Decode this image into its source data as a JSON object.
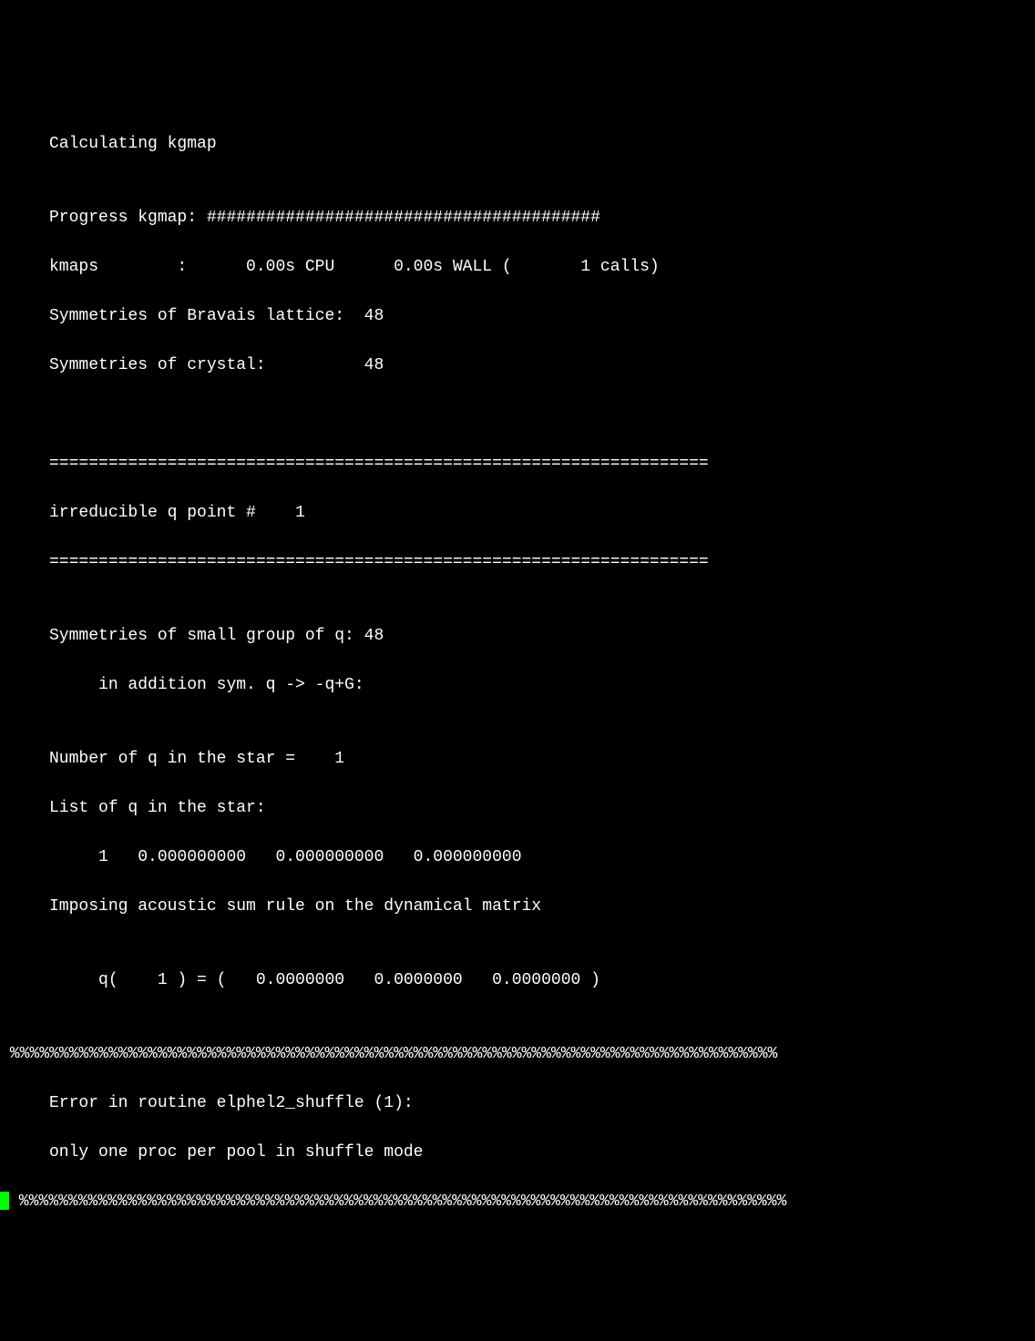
{
  "terminal": {
    "background_color": "#000000",
    "text_color": "#ffffff",
    "cursor_color": "#00ff00",
    "font_family": "monospace",
    "font_size": 18,
    "lines": {
      "calc_header": "     Calculating kgmap",
      "blank1": "",
      "progress": "     Progress kgmap: ########################################",
      "kmaps_timing": "     kmaps        :      0.00s CPU      0.00s WALL (       1 calls)",
      "sym_bravais": "     Symmetries of Bravais lattice:  48",
      "sym_crystal": "     Symmetries of crystal:          48",
      "blank2": "",
      "blank3": "",
      "divider1": "     ===================================================================",
      "qpoint_header": "     irreducible q point #    1",
      "divider2": "     ===================================================================",
      "blank4": "",
      "sym_small": "     Symmetries of small group of q: 48",
      "sym_addition": "          in addition sym. q -> -q+G:",
      "blank5": "",
      "num_q_star": "     Number of q in the star =    1",
      "list_q_star": "     List of q in the star:",
      "q_values": "          1   0.000000000   0.000000000   0.000000000",
      "imposing": "     Imposing acoustic sum rule on the dynamical matrix",
      "blank6": "",
      "q_coord": "          q(    1 ) = (   0.0000000   0.0000000   0.0000000 )",
      "blank7": "",
      "error_border1": " %%%%%%%%%%%%%%%%%%%%%%%%%%%%%%%%%%%%%%%%%%%%%%%%%%%%%%%%%%%%%%%%%%%%%%%%%%%%%%",
      "error_routine": "     Error in routine elphel2_shuffle (1):",
      "error_msg": "     only one proc per pool in shuffle mode",
      "error_border2": " %%%%%%%%%%%%%%%%%%%%%%%%%%%%%%%%%%%%%%%%%%%%%%%%%%%%%%%%%%%%%%%%%%%%%%%%%%%%%%"
    }
  }
}
